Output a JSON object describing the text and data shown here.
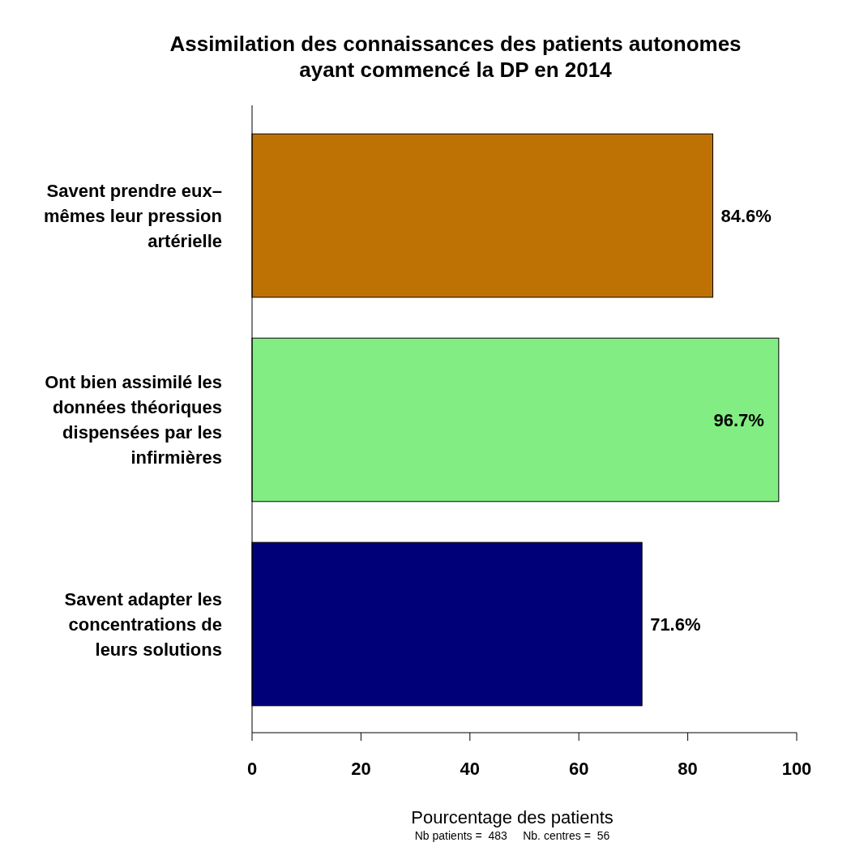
{
  "chart_data": {
    "type": "bar",
    "orientation": "horizontal",
    "title": "Assimilation des connaissances des patients autonomes ayant commencé la DP en 2014",
    "categories": [
      "Savent prendre eux– mêmes leur pression artérielle",
      "Ont bien assimilé les données théoriques dispensées par les infirmières",
      "Savent adapter les concentrations de leurs solutions"
    ],
    "values": [
      84.6,
      96.7,
      71.6
    ],
    "colors": [
      "#bf7204",
      "#82ed82",
      "#000078"
    ],
    "value_labels": [
      "84.6%",
      "96.7%",
      "71.6%"
    ],
    "xlim": [
      0,
      100
    ],
    "xticks": [
      0,
      20,
      40,
      60,
      80,
      100
    ],
    "xlabel": "Pourcentage des patients",
    "annotations": [
      "Nb patients =  483     Nb. centres =  56"
    ],
    "grid": false
  }
}
